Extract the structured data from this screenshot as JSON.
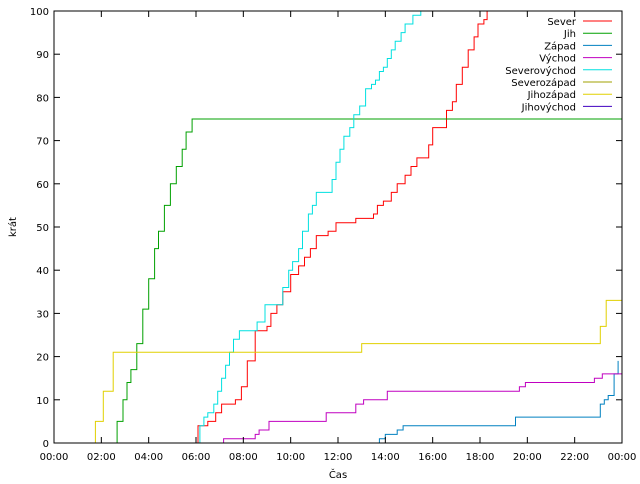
{
  "chart_data": {
    "type": "line",
    "title": "",
    "xlabel": "Čas",
    "ylabel": "krát",
    "xlim": [
      "00:00",
      "24:00"
    ],
    "ylim": [
      0,
      100
    ],
    "x_ticks": [
      "00:00",
      "02:00",
      "04:00",
      "06:00",
      "08:00",
      "10:00",
      "12:00",
      "14:00",
      "16:00",
      "18:00",
      "20:00",
      "22:00",
      "00:00"
    ],
    "y_ticks": [
      0,
      10,
      20,
      30,
      40,
      50,
      60,
      70,
      80,
      90,
      100
    ],
    "grid": false,
    "legend_position": "top-right",
    "series": [
      {
        "name": "Sever",
        "color": "#ff0000",
        "points": [
          [
            "05:59",
            0
          ],
          [
            "06:05",
            4
          ],
          [
            "06:30",
            5
          ],
          [
            "06:50",
            7
          ],
          [
            "07:05",
            9
          ],
          [
            "07:40",
            10
          ],
          [
            "07:55",
            13
          ],
          [
            "08:10",
            19
          ],
          [
            "08:30",
            26
          ],
          [
            "09:00",
            27
          ],
          [
            "09:10",
            30
          ],
          [
            "09:25",
            32
          ],
          [
            "09:40",
            35
          ],
          [
            "10:00",
            39
          ],
          [
            "10:20",
            41
          ],
          [
            "10:35",
            43
          ],
          [
            "10:50",
            45
          ],
          [
            "11:05",
            48
          ],
          [
            "11:35",
            49
          ],
          [
            "11:55",
            51
          ],
          [
            "12:30",
            51
          ],
          [
            "12:45",
            52
          ],
          [
            "13:30",
            53
          ],
          [
            "13:40",
            55
          ],
          [
            "13:55",
            56
          ],
          [
            "14:15",
            58
          ],
          [
            "14:30",
            60
          ],
          [
            "14:50",
            62
          ],
          [
            "15:05",
            64
          ],
          [
            "15:20",
            66
          ],
          [
            "15:40",
            66
          ],
          [
            "15:50",
            69
          ],
          [
            "16:00",
            73
          ],
          [
            "16:20",
            73
          ],
          [
            "16:35",
            77
          ],
          [
            "16:50",
            79
          ],
          [
            "17:00",
            83
          ],
          [
            "17:15",
            87
          ],
          [
            "17:30",
            91
          ],
          [
            "17:45",
            94
          ],
          [
            "17:55",
            97
          ],
          [
            "18:10",
            98
          ],
          [
            "18:18",
            100
          ]
        ]
      },
      {
        "name": "Jih",
        "color": "#00a000",
        "points": [
          [
            "02:25",
            0
          ],
          [
            "02:40",
            5
          ],
          [
            "02:55",
            10
          ],
          [
            "03:05",
            14
          ],
          [
            "03:15",
            17
          ],
          [
            "03:30",
            23
          ],
          [
            "03:45",
            31
          ],
          [
            "04:00",
            38
          ],
          [
            "04:15",
            45
          ],
          [
            "04:25",
            49
          ],
          [
            "04:40",
            55
          ],
          [
            "04:55",
            60
          ],
          [
            "05:10",
            64
          ],
          [
            "05:25",
            68
          ],
          [
            "05:35",
            72
          ],
          [
            "05:50",
            75
          ],
          [
            "24:00",
            75
          ]
        ]
      },
      {
        "name": "Západ",
        "color": "#0080c0",
        "points": [
          [
            "13:40",
            0
          ],
          [
            "13:45",
            1
          ],
          [
            "14:00",
            2
          ],
          [
            "14:30",
            3
          ],
          [
            "14:45",
            4
          ],
          [
            "19:25",
            4
          ],
          [
            "19:30",
            6
          ],
          [
            "22:50",
            6
          ],
          [
            "23:05",
            9
          ],
          [
            "23:15",
            10
          ],
          [
            "23:25",
            11
          ],
          [
            "23:40",
            16
          ],
          [
            "23:50",
            19
          ]
        ]
      },
      {
        "name": "Východ",
        "color": "#c000c0",
        "points": [
          [
            "07:05",
            0
          ],
          [
            "07:10",
            1
          ],
          [
            "08:20",
            1
          ],
          [
            "08:30",
            2
          ],
          [
            "08:40",
            3
          ],
          [
            "09:05",
            5
          ],
          [
            "11:15",
            5
          ],
          [
            "11:30",
            7
          ],
          [
            "12:35",
            7
          ],
          [
            "12:45",
            9
          ],
          [
            "13:05",
            10
          ],
          [
            "13:55",
            10
          ],
          [
            "14:05",
            12
          ],
          [
            "19:25",
            12
          ],
          [
            "19:40",
            13
          ],
          [
            "19:55",
            14
          ],
          [
            "22:40",
            14
          ],
          [
            "22:50",
            15
          ],
          [
            "23:10",
            16
          ],
          [
            "24:00",
            16
          ]
        ]
      },
      {
        "name": "Severovýchod",
        "color": "#00e0e0",
        "points": [
          [
            "06:05",
            0
          ],
          [
            "06:10",
            4
          ],
          [
            "06:20",
            6
          ],
          [
            "06:30",
            7
          ],
          [
            "06:45",
            9
          ],
          [
            "06:55",
            12
          ],
          [
            "07:05",
            15
          ],
          [
            "07:15",
            18
          ],
          [
            "07:25",
            21
          ],
          [
            "07:35",
            24
          ],
          [
            "07:50",
            26
          ],
          [
            "08:20",
            26
          ],
          [
            "08:35",
            28
          ],
          [
            "08:55",
            32
          ],
          [
            "09:20",
            32
          ],
          [
            "09:40",
            36
          ],
          [
            "09:55",
            40
          ],
          [
            "10:05",
            42
          ],
          [
            "10:20",
            45
          ],
          [
            "10:30",
            49
          ],
          [
            "10:45",
            53
          ],
          [
            "10:55",
            55
          ],
          [
            "11:05",
            58
          ],
          [
            "11:35",
            58
          ],
          [
            "11:45",
            61
          ],
          [
            "11:55",
            65
          ],
          [
            "12:05",
            68
          ],
          [
            "12:15",
            71
          ],
          [
            "12:30",
            73
          ],
          [
            "12:40",
            76
          ],
          [
            "12:55",
            78
          ],
          [
            "13:10",
            82
          ],
          [
            "13:25",
            83
          ],
          [
            "13:35",
            84
          ],
          [
            "13:45",
            86
          ],
          [
            "13:55",
            87
          ],
          [
            "14:05",
            89
          ],
          [
            "14:15",
            91
          ],
          [
            "14:25",
            93
          ],
          [
            "14:40",
            95
          ],
          [
            "14:50",
            97
          ],
          [
            "15:10",
            99
          ],
          [
            "15:30",
            100
          ]
        ]
      },
      {
        "name": "Severozápad",
        "color": "#a0a000",
        "points": []
      },
      {
        "name": "Jihozápad",
        "color": "#e0d000",
        "points": [
          [
            "01:35",
            0
          ],
          [
            "01:45",
            5
          ],
          [
            "02:05",
            12
          ],
          [
            "02:30",
            21
          ],
          [
            "12:55",
            21
          ],
          [
            "13:00",
            23
          ],
          [
            "22:45",
            23
          ],
          [
            "23:05",
            27
          ],
          [
            "23:20",
            33
          ],
          [
            "24:00",
            33
          ]
        ]
      },
      {
        "name": "Jihovýchod",
        "color": "#4000c0",
        "points": []
      }
    ]
  }
}
